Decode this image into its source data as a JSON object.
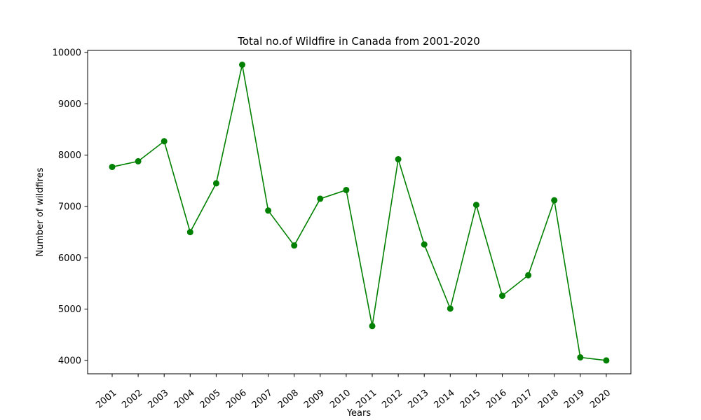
{
  "chart_data": {
    "type": "line",
    "title": "Total no.of Wildfire in Canada from 2001-2020",
    "xlabel": "Years",
    "ylabel": "Number of wildfires",
    "categories": [
      "2001",
      "2002",
      "2003",
      "2004",
      "2005",
      "2006",
      "2007",
      "2008",
      "2009",
      "2010",
      "2011",
      "2012",
      "2013",
      "2014",
      "2015",
      "2016",
      "2017",
      "2018",
      "2019",
      "2020"
    ],
    "series": [
      {
        "values": [
          7770,
          7880,
          8270,
          6500,
          7450,
          9760,
          6920,
          6240,
          7150,
          7320,
          4670,
          7920,
          6260,
          5010,
          7030,
          5260,
          5660,
          7120,
          4060,
          4000
        ],
        "color": "#008000",
        "marker": "circle"
      }
    ],
    "ylim": [
      3740,
      10040
    ],
    "yticks": [
      4000,
      5000,
      6000,
      7000,
      8000,
      9000,
      10000
    ],
    "grid": false,
    "legend": "none"
  }
}
